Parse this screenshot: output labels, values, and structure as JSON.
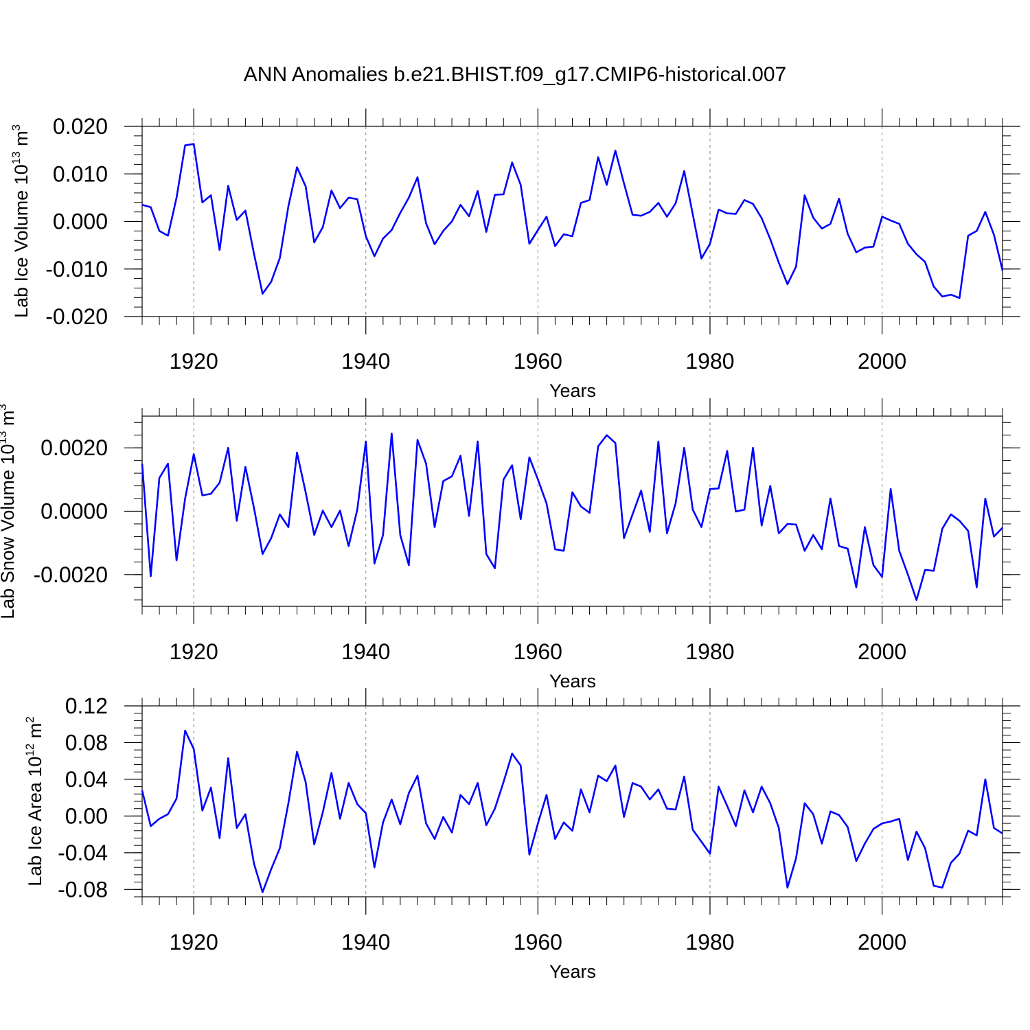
{
  "figure": {
    "title": "ANN Anomalies b.e21.BHIST.f09_g17.CMIP6-historical.007",
    "line_color": "#0000ff"
  },
  "chart_data": [
    {
      "type": "line",
      "title": "ANN Anomalies b.e21.BHIST.f09_g17.CMIP6-historical.007",
      "xlabel": "Years",
      "ylabel": "Lab Ice Volume 10",
      "ylabel_exp": "13",
      "ylabel_unit": " m",
      "ylabel_unit_exp": "3",
      "xlim": [
        1914,
        2014
      ],
      "ylim": [
        -0.02,
        0.02
      ],
      "xticks": [
        "1920",
        "1940",
        "1960",
        "1980",
        "2000"
      ],
      "yticks": [
        "0.020",
        "0.010",
        "0.000",
        "-0.010",
        "-0.020"
      ],
      "ytick_values": [
        0.02,
        0.01,
        0.0,
        -0.01,
        -0.02
      ],
      "x_start": 1914,
      "series": [
        {
          "name": "Lab Ice Volume",
          "values": [
            0.0035,
            0.003,
            -0.002,
            -0.003,
            0.005,
            0.016,
            0.0163,
            0.004,
            0.0055,
            -0.006,
            0.0075,
            0.0003,
            0.0023,
            -0.0068,
            -0.0152,
            -0.0127,
            -0.0077,
            0.0032,
            0.0114,
            0.0074,
            -0.0044,
            -0.0012,
            0.0065,
            0.0028,
            0.005,
            0.0047,
            -0.0031,
            -0.0073,
            -0.0036,
            -0.0018,
            0.0018,
            0.005,
            0.0093,
            -0.0004,
            -0.0048,
            -0.002,
            0.0,
            0.0035,
            0.0011,
            0.0064,
            -0.0022,
            0.0056,
            0.0057,
            0.0124,
            0.0077,
            -0.0047,
            -0.0018,
            0.001,
            -0.0052,
            -0.0027,
            -0.0031,
            0.0039,
            0.0045,
            0.0135,
            0.0077,
            0.0149,
            0.008,
            0.0014,
            0.0012,
            0.002,
            0.0039,
            0.001,
            0.0038,
            0.0106,
            0.0015,
            -0.0078,
            -0.0047,
            0.0025,
            0.0017,
            0.0016,
            0.0045,
            0.0037,
            0.0007,
            -0.0037,
            -0.0087,
            -0.0132,
            -0.0095,
            0.0055,
            0.0008,
            -0.0015,
            -0.0005,
            0.0048,
            -0.0026,
            -0.0065,
            -0.0055,
            -0.0053,
            0.001,
            0.0002,
            -0.0005,
            -0.0047,
            -0.0069,
            -0.0085,
            -0.0137,
            -0.0158,
            -0.0154,
            -0.0161,
            -0.003,
            -0.002,
            0.002,
            -0.0028,
            -0.0103
          ]
        }
      ]
    },
    {
      "type": "line",
      "xlabel": "Years",
      "ylabel": "Lab Snow Volume 10",
      "ylabel_exp": "13",
      "ylabel_unit": " m",
      "ylabel_unit_exp": "3",
      "xlim": [
        1914,
        2014
      ],
      "ylim": [
        -0.003,
        0.003
      ],
      "xticks": [
        "1920",
        "1940",
        "1960",
        "1980",
        "2000"
      ],
      "yticks": [
        "0.0020",
        "0.0000",
        "-0.0020"
      ],
      "ytick_values": [
        0.002,
        0.0,
        -0.002
      ],
      "x_start": 1914,
      "series": [
        {
          "name": "Lab Snow Volume",
          "values": [
            0.0015,
            -0.00205,
            0.00105,
            0.0015,
            -0.00155,
            0.0004,
            0.0018,
            0.0005,
            0.00055,
            0.0009,
            0.002,
            -0.0003,
            0.0014,
            0.0001,
            -0.00135,
            -0.00085,
            -0.0001,
            -0.0005,
            0.00185,
            0.0006,
            -0.00075,
            2e-05,
            -0.0005,
            2e-05,
            -0.0011,
            5e-05,
            0.0022,
            -0.00165,
            -0.00075,
            0.00245,
            -0.00075,
            -0.0017,
            0.00225,
            0.0015,
            -0.0005,
            0.00095,
            0.0011,
            0.00175,
            -0.00015,
            0.0022,
            -0.00135,
            -0.0018,
            0.001,
            0.00145,
            -0.00025,
            0.0017,
            0.001,
            0.00025,
            -0.0012,
            -0.00125,
            0.0006,
            0.00015,
            -5e-05,
            0.00205,
            0.0024,
            0.00215,
            -0.00085,
            -0.0001,
            0.00065,
            -0.00065,
            0.0022,
            -0.0007,
            0.00025,
            0.002,
            5e-05,
            -0.0005,
            0.0007,
            0.00072,
            0.0019,
            -1e-05,
            5e-05,
            0.002,
            -0.00045,
            0.0008,
            -0.0007,
            -0.0004,
            -0.00042,
            -0.00125,
            -0.00075,
            -0.0012,
            0.0004,
            -0.0011,
            -0.00118,
            -0.0024,
            -0.0005,
            -0.0017,
            -0.00207,
            0.0007,
            -0.00125,
            -0.002,
            -0.0028,
            -0.00185,
            -0.00188,
            -0.00055,
            -0.0001,
            -0.0003,
            -0.00062,
            -0.0024,
            0.0004,
            -0.0008,
            -0.00052
          ]
        }
      ]
    },
    {
      "type": "line",
      "xlabel": "Years",
      "ylabel": "Lab Ice Area 10",
      "ylabel_exp": "12",
      "ylabel_unit": " m",
      "ylabel_unit_exp": "2",
      "xlim": [
        1914,
        2014
      ],
      "ylim": [
        -0.088,
        0.12
      ],
      "xticks": [
        "1920",
        "1940",
        "1960",
        "1980",
        "2000"
      ],
      "yticks": [
        "0.12",
        "0.08",
        "0.04",
        "0.00",
        "-0.04",
        "-0.08"
      ],
      "ytick_values": [
        0.12,
        0.08,
        0.04,
        0.0,
        -0.04,
        -0.08
      ],
      "x_start": 1914,
      "series": [
        {
          "name": "Lab Ice Area",
          "values": [
            0.028,
            -0.011,
            -0.003,
            0.002,
            0.019,
            0.093,
            0.073,
            0.006,
            0.031,
            -0.024,
            0.063,
            -0.013,
            0.002,
            -0.052,
            -0.083,
            -0.058,
            -0.035,
            0.014,
            0.07,
            0.037,
            -0.031,
            0.004,
            0.047,
            -0.003,
            0.036,
            0.013,
            0.003,
            -0.056,
            -0.007,
            0.018,
            -0.009,
            0.025,
            0.044,
            -0.008,
            -0.025,
            -0.001,
            -0.018,
            0.023,
            0.013,
            0.036,
            -0.01,
            0.008,
            0.037,
            0.068,
            0.055,
            -0.042,
            -0.008,
            0.023,
            -0.025,
            -0.007,
            -0.016,
            0.029,
            0.004,
            0.044,
            0.038,
            0.055,
            -0.001,
            0.036,
            0.032,
            0.018,
            0.029,
            0.008,
            0.007,
            0.043,
            -0.015,
            -0.028,
            -0.041,
            0.032,
            0.011,
            -0.011,
            0.028,
            0.004,
            0.032,
            0.014,
            -0.013,
            -0.078,
            -0.046,
            0.014,
            0.002,
            -0.03,
            0.005,
            0.001,
            -0.012,
            -0.049,
            -0.03,
            -0.014,
            -0.008,
            -0.006,
            -0.003,
            -0.048,
            -0.017,
            -0.035,
            -0.076,
            -0.078,
            -0.051,
            -0.041,
            -0.016,
            -0.021,
            0.04,
            -0.013,
            -0.019
          ]
        }
      ]
    }
  ]
}
